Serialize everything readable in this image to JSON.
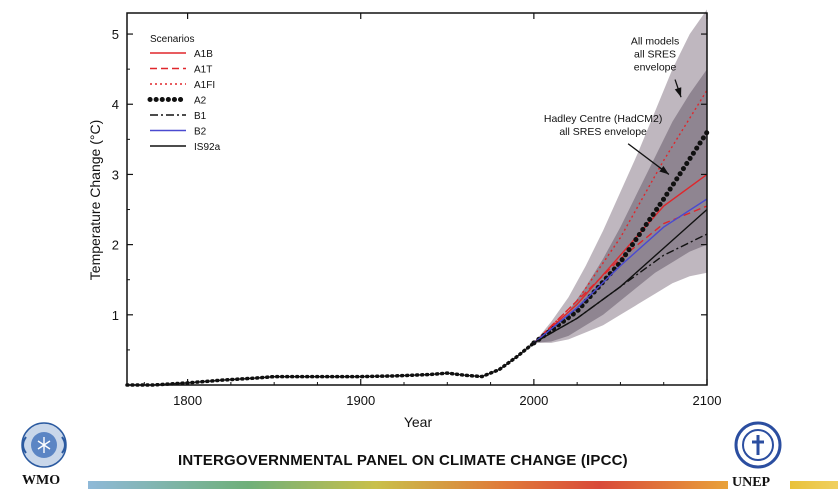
{
  "colors": {
    "outer_envelope": "#b4aab4",
    "inner_envelope": "#8a7f8c",
    "red": "#e0262b",
    "blue": "#4a4ad0",
    "black": "#111111"
  },
  "chart_data": {
    "type": "line",
    "xlabel": "Year",
    "ylabel": "Temperature Change (°C)",
    "xlim": [
      1765,
      2100
    ],
    "ylim": [
      0,
      5.3
    ],
    "xticks": [
      1800,
      1900,
      2000,
      2100
    ],
    "yticks": [
      1,
      2,
      3,
      4,
      5
    ],
    "grid": false,
    "legend": {
      "title": "Scenarios",
      "placement": "top-left",
      "entries": [
        {
          "label": "A1B",
          "color": "#e0262b",
          "style": "solid"
        },
        {
          "label": "A1T",
          "color": "#e0262b",
          "style": "dashed"
        },
        {
          "label": "A1FI",
          "color": "#e0262b",
          "style": "dotted"
        },
        {
          "label": "A2",
          "color": "#111111",
          "style": "heavy-dotted"
        },
        {
          "label": "B1",
          "color": "#111111",
          "style": "dash-dot"
        },
        {
          "label": "B2",
          "color": "#4a4ad0",
          "style": "solid"
        },
        {
          "label": "IS92a",
          "color": "#111111",
          "style": "solid"
        }
      ]
    },
    "annotations": [
      {
        "text": [
          "All models",
          "all SRES",
          "envelope"
        ],
        "x": 2070,
        "y": 4.85,
        "arrow_to": [
          2085,
          4.1
        ]
      },
      {
        "text": [
          "Hadley Centre (HadCM2)",
          "all SRES envelope"
        ],
        "x": 2040,
        "y": 3.75,
        "arrow_to": [
          2078,
          3.0
        ]
      }
    ],
    "envelopes": [
      {
        "name": "All models all SRES envelope",
        "x": [
          2000,
          2010,
          2020,
          2030,
          2040,
          2050,
          2060,
          2070,
          2080,
          2090,
          2100
        ],
        "upper": [
          0.6,
          0.9,
          1.25,
          1.7,
          2.2,
          2.75,
          3.3,
          3.9,
          4.5,
          5.0,
          5.35
        ],
        "lower": [
          0.6,
          0.6,
          0.65,
          0.75,
          0.85,
          1.0,
          1.15,
          1.3,
          1.45,
          1.55,
          1.6
        ]
      },
      {
        "name": "Hadley Centre (HadCM2) all SRES envelope",
        "x": [
          2000,
          2010,
          2020,
          2030,
          2040,
          2050,
          2060,
          2070,
          2080,
          2090,
          2100
        ],
        "upper": [
          0.6,
          0.8,
          1.05,
          1.4,
          1.8,
          2.25,
          2.75,
          3.25,
          3.75,
          4.15,
          4.5
        ],
        "lower": [
          0.6,
          0.62,
          0.7,
          0.85,
          1.0,
          1.2,
          1.4,
          1.6,
          1.75,
          1.9,
          2.0
        ]
      }
    ],
    "historical": {
      "x": [
        1765,
        1780,
        1800,
        1820,
        1840,
        1850,
        1860,
        1880,
        1900,
        1920,
        1940,
        1950,
        1960,
        1970,
        1980,
        1990,
        2000
      ],
      "y": [
        0.0,
        0.0,
        0.03,
        0.07,
        0.1,
        0.12,
        0.12,
        0.12,
        0.12,
        0.13,
        0.15,
        0.17,
        0.14,
        0.12,
        0.22,
        0.4,
        0.6
      ]
    },
    "series": [
      {
        "name": "A1B",
        "x": [
          2000,
          2025,
          2050,
          2075,
          2100
        ],
        "y": [
          0.6,
          1.15,
          1.85,
          2.55,
          3.0
        ]
      },
      {
        "name": "A1T",
        "x": [
          2000,
          2025,
          2050,
          2075,
          2100
        ],
        "y": [
          0.6,
          1.2,
          1.8,
          2.3,
          2.55
        ]
      },
      {
        "name": "A1FI",
        "x": [
          2000,
          2025,
          2050,
          2075,
          2100
        ],
        "y": [
          0.6,
          1.2,
          2.1,
          3.2,
          4.2
        ]
      },
      {
        "name": "A2",
        "x": [
          2000,
          2025,
          2050,
          2075,
          2100
        ],
        "y": [
          0.6,
          1.05,
          1.75,
          2.65,
          3.6
        ]
      },
      {
        "name": "B1",
        "x": [
          2000,
          2025,
          2050,
          2075,
          2100
        ],
        "y": [
          0.6,
          0.95,
          1.4,
          1.85,
          2.15
        ]
      },
      {
        "name": "B2",
        "x": [
          2000,
          2025,
          2050,
          2075,
          2100
        ],
        "y": [
          0.6,
          1.1,
          1.7,
          2.25,
          2.65
        ]
      },
      {
        "name": "IS92a",
        "x": [
          2000,
          2025,
          2050,
          2075,
          2100
        ],
        "y": [
          0.6,
          0.95,
          1.4,
          1.95,
          2.5
        ]
      }
    ]
  },
  "footer": {
    "title": "INTERGOVERNMENTAL PANEL ON CLIMATE CHANGE (IPCC)",
    "left_logo": "WMO",
    "right_logo": "UNEP",
    "left_logo_icon": "wmo-emblem-icon",
    "right_logo_icon": "unep-emblem-icon"
  }
}
